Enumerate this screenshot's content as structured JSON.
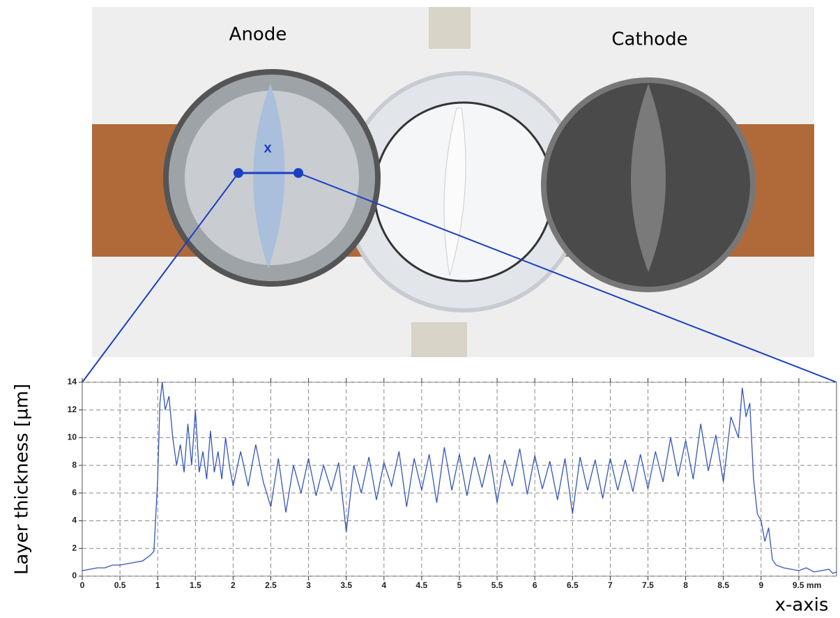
{
  "chart_data": {
    "type": "line",
    "annotations": [
      "Anode",
      "Cathode",
      "x"
    ],
    "y_label": "Layer thickness [µm]",
    "x_label": "x-axis",
    "color": "#3355bb",
    "grid": true,
    "xlim": [
      0,
      10
    ],
    "ylim": [
      0,
      14
    ],
    "xticks": [
      0,
      0.5,
      1,
      1.5,
      2,
      2.5,
      3,
      3.5,
      4,
      4.5,
      5,
      5.5,
      6,
      6.5,
      7,
      7.5,
      8,
      8.5,
      9,
      {
        "value": 9.5,
        "label": "9.5 mm"
      }
    ],
    "yticks": [
      0,
      2,
      4,
      6,
      8,
      10,
      12,
      14
    ],
    "x": [
      0,
      0.1,
      0.2,
      0.3,
      0.4,
      0.5,
      0.6,
      0.7,
      0.8,
      0.9,
      0.95,
      1.0,
      1.03,
      1.06,
      1.1,
      1.15,
      1.2,
      1.25,
      1.3,
      1.35,
      1.4,
      1.45,
      1.5,
      1.55,
      1.6,
      1.65,
      1.7,
      1.75,
      1.8,
      1.85,
      1.9,
      1.95,
      2.0,
      2.1,
      2.2,
      2.3,
      2.4,
      2.5,
      2.6,
      2.7,
      2.8,
      2.9,
      3.0,
      3.1,
      3.2,
      3.3,
      3.4,
      3.5,
      3.6,
      3.7,
      3.8,
      3.9,
      4.0,
      4.1,
      4.2,
      4.3,
      4.4,
      4.5,
      4.6,
      4.7,
      4.8,
      4.9,
      5.0,
      5.1,
      5.2,
      5.3,
      5.4,
      5.5,
      5.6,
      5.7,
      5.8,
      5.9,
      6.0,
      6.1,
      6.2,
      6.3,
      6.4,
      6.5,
      6.6,
      6.7,
      6.8,
      6.9,
      7.0,
      7.1,
      7.2,
      7.3,
      7.4,
      7.5,
      7.6,
      7.7,
      7.8,
      7.9,
      8.0,
      8.1,
      8.2,
      8.3,
      8.4,
      8.5,
      8.6,
      8.7,
      8.75,
      8.8,
      8.85,
      8.9,
      8.95,
      9.0,
      9.05,
      9.1,
      9.15,
      9.2,
      9.3,
      9.4,
      9.5,
      9.6,
      9.7,
      9.8,
      9.9,
      9.95,
      10.0
    ],
    "values": [
      0.4,
      0.5,
      0.6,
      0.6,
      0.8,
      0.8,
      0.9,
      1.0,
      1.1,
      1.5,
      1.8,
      7,
      12.5,
      14,
      12,
      13,
      10,
      8,
      9.5,
      7.5,
      11,
      8,
      12,
      7.5,
      9,
      7,
      10.5,
      7.5,
      9,
      7,
      10,
      8,
      6.5,
      9,
      6.5,
      9.5,
      6.8,
      5,
      8.5,
      4.6,
      8,
      6,
      8.5,
      5.8,
      8,
      6.2,
      8.2,
      3.2,
      8,
      6,
      8.6,
      5.5,
      8.2,
      6.5,
      9,
      5,
      8.5,
      6.2,
      8.8,
      5.3,
      9.3,
      6.2,
      8.8,
      5.8,
      8.6,
      6.4,
      8.8,
      5.3,
      8.4,
      6.5,
      9.2,
      5.9,
      8.7,
      6.3,
      8.3,
      5.5,
      8.5,
      4.5,
      8.6,
      6.2,
      8.4,
      5.6,
      8.5,
      6.2,
      8.4,
      6.1,
      8.8,
      6.3,
      9.0,
      6.8,
      10.0,
      7.2,
      9.8,
      7.0,
      11.0,
      7.6,
      10.2,
      6.8,
      11.5,
      10,
      13.6,
      11.5,
      12.5,
      7,
      4.5,
      4,
      2.5,
      3.5,
      1.2,
      0.8,
      0.6,
      0.5,
      0.4,
      0.6,
      0.3,
      0.4,
      0.5,
      0.2,
      0.3
    ]
  }
}
